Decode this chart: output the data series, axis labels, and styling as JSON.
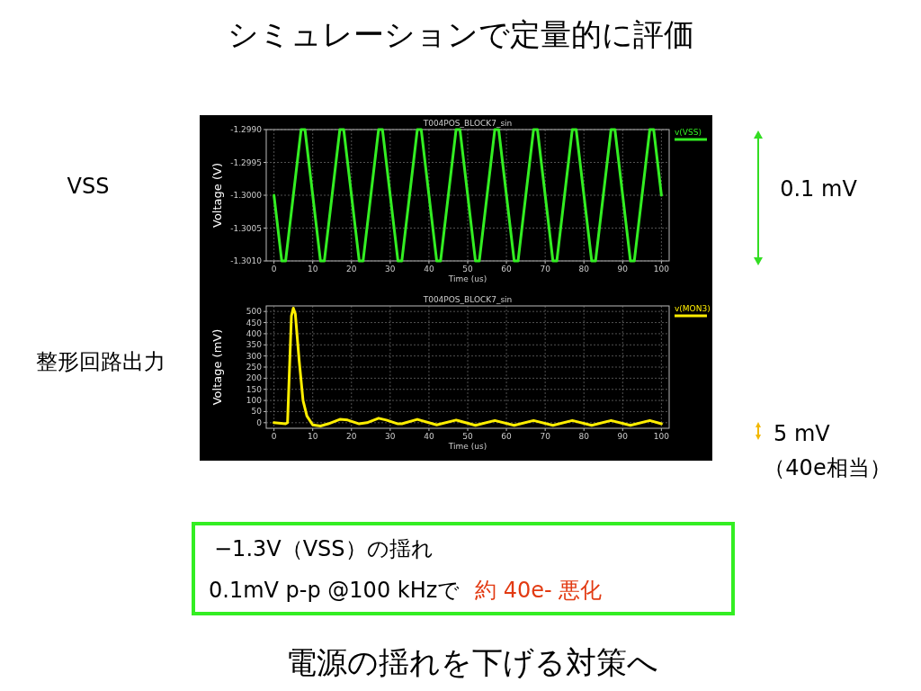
{
  "chart_data": [
    {
      "type": "line",
      "title": "T004POS_BLOCK7_sin",
      "xlabel": "Time (us)",
      "ylabel": "Voltage (V)",
      "annotations": [
        "シミュレーションで定量的に評価",
        "VSS",
        "0.1 mV",
        "−1.3V（VSS）の揺れ",
        "0.1mV p-p @100 kHzで",
        "約 40e- 悪化"
      ],
      "xlim": [
        -2,
        102
      ],
      "xticks": [
        0,
        10,
        20,
        30,
        40,
        50,
        60,
        70,
        80,
        90,
        100
      ],
      "ylim": [
        -1.301,
        -1.299
      ],
      "yticks": [
        {
          "value": -1.299,
          "label": "-1.2990"
        },
        {
          "value": -1.2995,
          "label": "-1.2995"
        },
        {
          "value": -1.3,
          "label": "-1.3000"
        },
        {
          "value": -1.3005,
          "label": "-1.3005"
        },
        {
          "value": -1.301,
          "label": "-1.3010"
        }
      ],
      "grid": true,
      "legend": "top right",
      "series": [
        {
          "name": "v(VSS)",
          "color": "#33ee22",
          "x": [
            0,
            2,
            3,
            5,
            7,
            8,
            10,
            12,
            13,
            15,
            17,
            18,
            20,
            22,
            23,
            25,
            27,
            28,
            30,
            32,
            33,
            35,
            37,
            38,
            40,
            42,
            43,
            45,
            47,
            48,
            50,
            52,
            53,
            55,
            57,
            58,
            60,
            62,
            63,
            65,
            67,
            68,
            70,
            72,
            73,
            75,
            77,
            78,
            80,
            82,
            83,
            85,
            87,
            88,
            90,
            92,
            93,
            95,
            97,
            98,
            100
          ],
          "values": [
            -1.3,
            -1.301,
            -1.301,
            -1.3,
            -1.299,
            -1.299,
            -1.3,
            -1.301,
            -1.301,
            -1.3,
            -1.299,
            -1.299,
            -1.3,
            -1.301,
            -1.301,
            -1.3,
            -1.299,
            -1.299,
            -1.3,
            -1.301,
            -1.301,
            -1.3,
            -1.299,
            -1.299,
            -1.3,
            -1.301,
            -1.301,
            -1.3,
            -1.299,
            -1.299,
            -1.3,
            -1.301,
            -1.301,
            -1.3,
            -1.299,
            -1.299,
            -1.3,
            -1.301,
            -1.301,
            -1.3,
            -1.299,
            -1.299,
            -1.3,
            -1.301,
            -1.301,
            -1.3,
            -1.299,
            -1.299,
            -1.3,
            -1.301,
            -1.301,
            -1.3,
            -1.299,
            -1.299,
            -1.3,
            -1.301,
            -1.301,
            -1.3,
            -1.299,
            -1.299,
            -1.3
          ]
        }
      ]
    },
    {
      "type": "line",
      "title": "T004POS_BLOCK7_sin",
      "xlabel": "Time (us)",
      "ylabel": "Voltage (mV)",
      "annotations": [
        "整形回路出力",
        "5 mV",
        "（40e相当）",
        "電源の揺れを下げる対策へ"
      ],
      "xlim": [
        -2,
        102
      ],
      "xticks": [
        0,
        10,
        20,
        30,
        40,
        50,
        60,
        70,
        80,
        90,
        100
      ],
      "ylim": [
        -25,
        525
      ],
      "yticks": [
        0,
        50,
        100,
        150,
        200,
        250,
        300,
        350,
        400,
        450,
        500
      ],
      "grid": true,
      "legend": "top right",
      "series": [
        {
          "name": "v(MON3)",
          "color": "#ffee00",
          "x": [
            0,
            3,
            3.5,
            4.5,
            5,
            5.5,
            6.5,
            7.5,
            8.5,
            10,
            12,
            14,
            17,
            19,
            22,
            24,
            27,
            29,
            32,
            33,
            37,
            42,
            47,
            52,
            57,
            62,
            67,
            72,
            77,
            82,
            87,
            92,
            97,
            100
          ],
          "values": [
            0,
            -5,
            0,
            480,
            515,
            490,
            280,
            100,
            30,
            -10,
            -15,
            -5,
            15,
            12,
            -5,
            0,
            20,
            12,
            -5,
            -5,
            15,
            -10,
            12,
            -12,
            10,
            -12,
            10,
            -12,
            10,
            -12,
            10,
            -12,
            10,
            -5
          ]
        }
      ]
    }
  ]
}
